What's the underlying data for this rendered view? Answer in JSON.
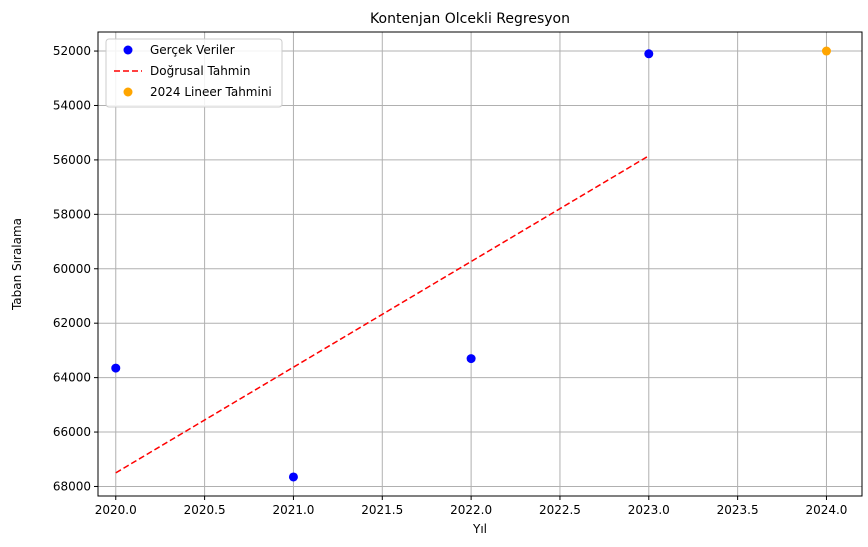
{
  "chart_data": {
    "type": "scatter",
    "title": "Kontenjan Olcekli Regresyon",
    "xlabel": "Yıl",
    "ylabel": "Taban Sıralama",
    "xlim": [
      2019.9,
      2024.2
    ],
    "ylim": [
      68350,
      51300
    ],
    "y_inverted": true,
    "grid": true,
    "legend_position": "top-left",
    "x_ticks": [
      2020.0,
      2020.5,
      2021.0,
      2021.5,
      2022.0,
      2022.5,
      2023.0,
      2023.5,
      2024.0
    ],
    "x_tick_labels": [
      "2020.0",
      "2020.5",
      "2021.0",
      "2021.5",
      "2022.0",
      "2022.5",
      "2023.0",
      "2023.5",
      "2024.0"
    ],
    "y_ticks": [
      52000,
      54000,
      56000,
      58000,
      60000,
      62000,
      64000,
      66000,
      68000
    ],
    "y_tick_labels": [
      "52000",
      "54000",
      "56000",
      "58000",
      "60000",
      "62000",
      "64000",
      "66000",
      "68000"
    ],
    "series": [
      {
        "name": "Gerçek Veriler",
        "kind": "scatter",
        "color": "#0000ff",
        "points": [
          {
            "x": 2020,
            "y": 63650
          },
          {
            "x": 2021,
            "y": 67650
          },
          {
            "x": 2022,
            "y": 63300
          },
          {
            "x": 2023,
            "y": 52100
          }
        ]
      },
      {
        "name": "Doğrusal Tahmin",
        "kind": "line",
        "style": "dashed",
        "color": "#ff0000",
        "points": [
          {
            "x": 2020,
            "y": 67500
          },
          {
            "x": 2023,
            "y": 55850
          }
        ]
      },
      {
        "name": "2024 Lineer Tahmini",
        "kind": "scatter",
        "color": "#ffa500",
        "points": [
          {
            "x": 2024,
            "y": 52000
          }
        ]
      }
    ]
  }
}
